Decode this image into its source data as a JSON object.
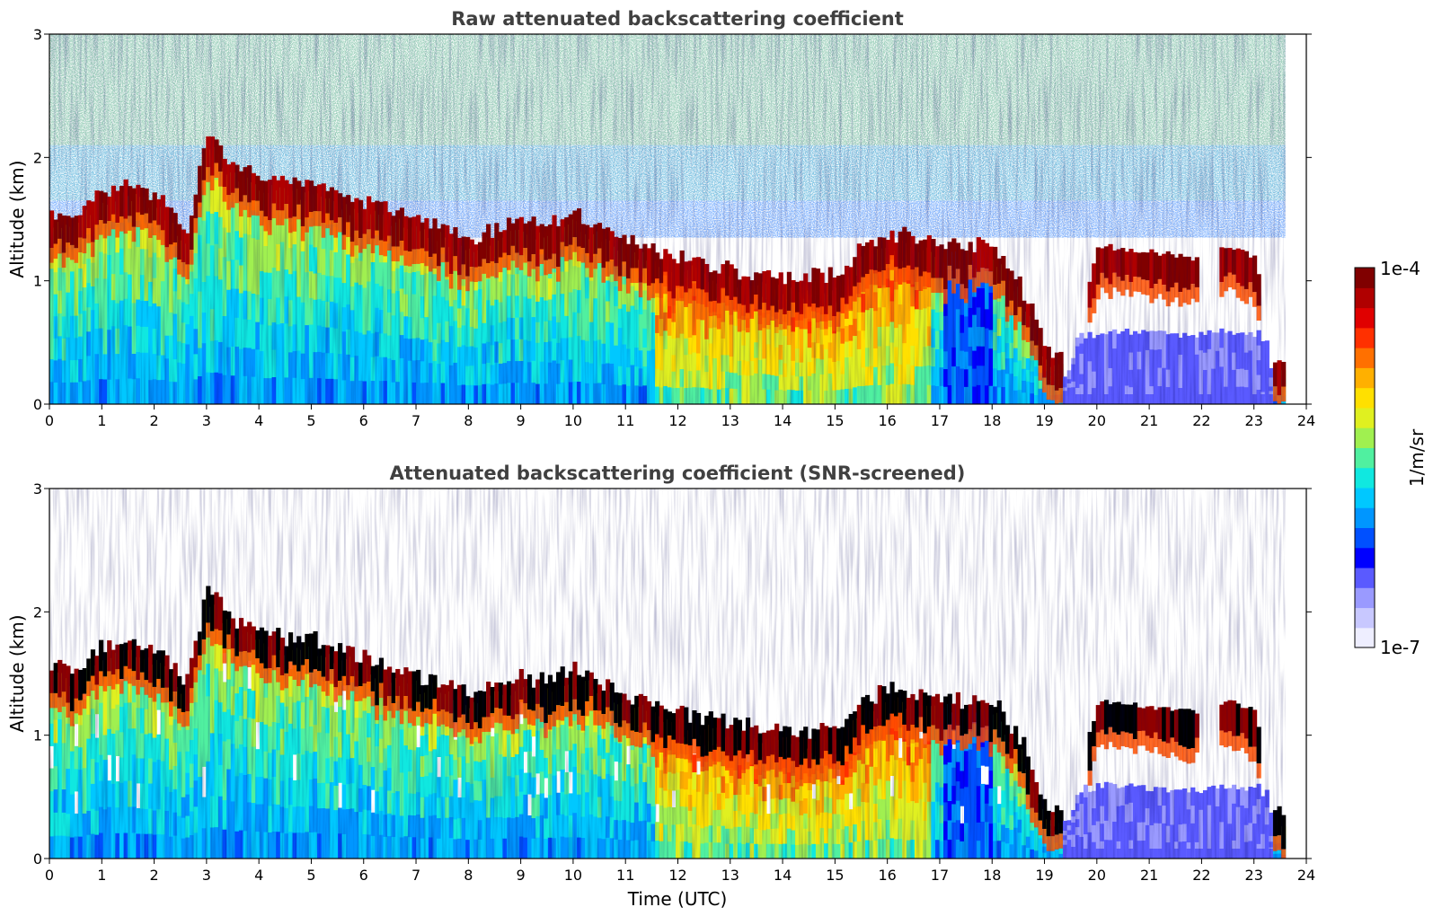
{
  "chart_data": [
    {
      "type": "heatmap",
      "title": "Raw attenuated backscattering coefficient",
      "xlabel": "",
      "ylabel": "Altitude (km)",
      "xlim": [
        0,
        24
      ],
      "ylim": [
        0,
        3
      ],
      "xticks": [
        "0",
        "1",
        "2",
        "3",
        "4",
        "5",
        "6",
        "7",
        "8",
        "9",
        "10",
        "11",
        "12",
        "13",
        "14",
        "15",
        "16",
        "17",
        "18",
        "19",
        "20",
        "21",
        "22",
        "23",
        "24"
      ],
      "yticks": [
        "0",
        "1",
        "2",
        "3"
      ],
      "data_end_hour": 23.6,
      "layer_top_km": [
        [
          0,
          1.45
        ],
        [
          0.5,
          1.45
        ],
        [
          1.0,
          1.65
        ],
        [
          1.5,
          1.7
        ],
        [
          2.0,
          1.6
        ],
        [
          2.6,
          1.35
        ],
        [
          3.0,
          2.1
        ],
        [
          3.5,
          1.85
        ],
        [
          4.0,
          1.75
        ],
        [
          4.5,
          1.7
        ],
        [
          5.0,
          1.7
        ],
        [
          6.0,
          1.55
        ],
        [
          7.0,
          1.4
        ],
        [
          7.5,
          1.35
        ],
        [
          8.0,
          1.25
        ],
        [
          9.0,
          1.4
        ],
        [
          9.5,
          1.35
        ],
        [
          10.0,
          1.45
        ],
        [
          11.0,
          1.25
        ],
        [
          12.0,
          1.1
        ],
        [
          13.0,
          1.0
        ],
        [
          14.0,
          0.95
        ],
        [
          15.0,
          0.95
        ],
        [
          15.5,
          1.2
        ],
        [
          16.0,
          1.3
        ],
        [
          16.5,
          1.25
        ],
        [
          17.0,
          1.2
        ],
        [
          18.0,
          1.2
        ],
        [
          18.5,
          0.9
        ],
        [
          19.0,
          0.35
        ],
        [
          19.4,
          0.25
        ],
        [
          20.0,
          1.2
        ],
        [
          21.0,
          1.15
        ],
        [
          21.8,
          1.1
        ],
        [
          22.5,
          1.2
        ],
        [
          23.0,
          1.1
        ],
        [
          23.3,
          0.3
        ],
        [
          23.6,
          0.3
        ]
      ],
      "boundary_layer_strong_segment_hours": [
        11.0,
        17.0
      ]
    },
    {
      "type": "heatmap",
      "title": "Attenuated backscattering coefficient (SNR-screened)",
      "xlabel": "Time (UTC)",
      "ylabel": "Altitude (km)",
      "xlim": [
        0,
        24
      ],
      "ylim": [
        0,
        3
      ],
      "xticks": [
        "0",
        "1",
        "2",
        "3",
        "4",
        "5",
        "6",
        "7",
        "8",
        "9",
        "10",
        "11",
        "12",
        "13",
        "14",
        "15",
        "16",
        "17",
        "18",
        "19",
        "20",
        "21",
        "22",
        "23",
        "24"
      ],
      "yticks": [
        "0",
        "1",
        "2",
        "3"
      ],
      "data_end_hour": 23.6
    }
  ],
  "colorbar": {
    "label": "1/m/sr",
    "max_label": "1e-4",
    "min_label": "1e-7",
    "colors": [
      "#eeeeff",
      "#c8c8ff",
      "#9a9aff",
      "#5a5aff",
      "#0000ff",
      "#0050ff",
      "#0096ff",
      "#00c8ff",
      "#10e8e0",
      "#50f0a0",
      "#a0f050",
      "#e0f020",
      "#ffe000",
      "#ffb000",
      "#ff7000",
      "#ff3000",
      "#e00000",
      "#b00000",
      "#800000"
    ]
  }
}
